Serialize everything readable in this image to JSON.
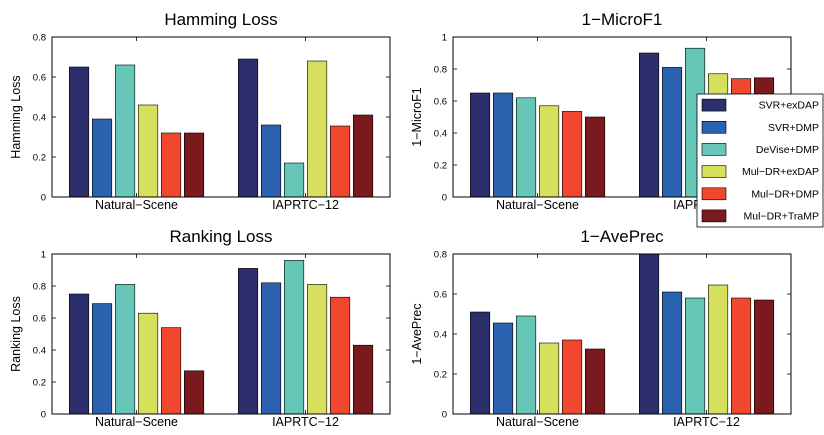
{
  "series_colors": [
    "#2c2f6b",
    "#2a62b0",
    "#66c7b9",
    "#d7e05c",
    "#f0472e",
    "#7a1a1e"
  ],
  "legend": {
    "entries": [
      "SVR+exDAP",
      "SVR+DMP",
      "DeVise+DMP",
      "Mul−DR+exDAP",
      "Mul−DR+DMP",
      "Mul−DR+TraMP"
    ],
    "placement": "right, overlapping 1−MicroF1 panel"
  },
  "chart_data": [
    {
      "type": "bar",
      "title": "Hamming Loss",
      "xlabel": "",
      "ylabel": "Hamming Loss",
      "categories": [
        "Natural−Scene",
        "IAPRTC−12"
      ],
      "ylim": [
        0,
        0.8
      ],
      "yticks": [
        0,
        0.2,
        0.4,
        0.6,
        0.8
      ],
      "ytick_labels": [
        "0",
        "0.2",
        "0.4",
        "0.6",
        "0.8"
      ],
      "grid": false,
      "series": [
        {
          "name": "SVR+exDAP",
          "values": [
            0.65,
            0.69
          ]
        },
        {
          "name": "SVR+DMP",
          "values": [
            0.39,
            0.36
          ]
        },
        {
          "name": "DeVise+DMP",
          "values": [
            0.66,
            0.17
          ]
        },
        {
          "name": "Mul−DR+exDAP",
          "values": [
            0.46,
            0.68
          ]
        },
        {
          "name": "Mul−DR+DMP",
          "values": [
            0.32,
            0.355
          ]
        },
        {
          "name": "Mul−DR+TraMP",
          "values": [
            0.32,
            0.41
          ]
        }
      ]
    },
    {
      "type": "bar",
      "title": "1−MicroF1",
      "xlabel": "",
      "ylabel": "1−MicroF1",
      "categories": [
        "Natural−Scene",
        "IAPRTC−12"
      ],
      "ylim": [
        0,
        1
      ],
      "yticks": [
        0,
        0.2,
        0.4,
        0.6,
        0.8,
        1
      ],
      "ytick_labels": [
        "0",
        "0.2",
        "0.4",
        "0.6",
        "0.8",
        "1"
      ],
      "grid": false,
      "series": [
        {
          "name": "SVR+exDAP",
          "values": [
            0.65,
            0.9
          ]
        },
        {
          "name": "SVR+DMP",
          "values": [
            0.65,
            0.81
          ]
        },
        {
          "name": "DeVise+DMP",
          "values": [
            0.62,
            0.93
          ]
        },
        {
          "name": "Mul−DR+exDAP",
          "values": [
            0.57,
            0.77
          ]
        },
        {
          "name": "Mul−DR+DMP",
          "values": [
            0.535,
            0.74
          ]
        },
        {
          "name": "Mul−DR+TraMP",
          "values": [
            0.5,
            0.745
          ]
        }
      ]
    },
    {
      "type": "bar",
      "title": "Ranking Loss",
      "xlabel": "",
      "ylabel": "Ranking Loss",
      "categories": [
        "Natural−Scene",
        "IAPRTC−12"
      ],
      "ylim": [
        0,
        1
      ],
      "yticks": [
        0,
        0.2,
        0.4,
        0.6,
        0.8,
        1
      ],
      "ytick_labels": [
        "0",
        "0.2",
        "0.4",
        "0.6",
        "0.8",
        "1"
      ],
      "grid": false,
      "series": [
        {
          "name": "SVR+exDAP",
          "values": [
            0.75,
            0.91
          ]
        },
        {
          "name": "SVR+DMP",
          "values": [
            0.69,
            0.82
          ]
        },
        {
          "name": "DeVise+DMP",
          "values": [
            0.81,
            0.96
          ]
        },
        {
          "name": "Mul−DR+exDAP",
          "values": [
            0.63,
            0.81
          ]
        },
        {
          "name": "Mul−DR+DMP",
          "values": [
            0.54,
            0.73
          ]
        },
        {
          "name": "Mul−DR+TraMP",
          "values": [
            0.27,
            0.43
          ]
        }
      ]
    },
    {
      "type": "bar",
      "title": "1−AvePrec",
      "xlabel": "",
      "ylabel": "1−AvePrec",
      "categories": [
        "Natural−Scene",
        "IAPRTC−12"
      ],
      "ylim": [
        0,
        0.8
      ],
      "yticks": [
        0,
        0.2,
        0.4,
        0.6,
        0.8
      ],
      "ytick_labels": [
        "0",
        "0.2",
        "0.4",
        "0.6",
        "0.8"
      ],
      "grid": false,
      "series": [
        {
          "name": "SVR+exDAP",
          "values": [
            0.51,
            0.8
          ]
        },
        {
          "name": "SVR+DMP",
          "values": [
            0.455,
            0.61
          ]
        },
        {
          "name": "DeVise+DMP",
          "values": [
            0.49,
            0.58
          ]
        },
        {
          "name": "Mul−DR+exDAP",
          "values": [
            0.355,
            0.645
          ]
        },
        {
          "name": "Mul−DR+DMP",
          "values": [
            0.37,
            0.58
          ]
        },
        {
          "name": "Mul−DR+TraMP",
          "values": [
            0.325,
            0.57
          ]
        }
      ]
    }
  ]
}
